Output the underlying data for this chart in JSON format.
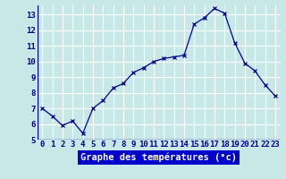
{
  "hours": [
    0,
    1,
    2,
    3,
    4,
    5,
    6,
    7,
    8,
    9,
    10,
    11,
    12,
    13,
    14,
    15,
    16,
    17,
    18,
    19,
    20,
    21,
    22,
    23
  ],
  "temps": [
    7.0,
    6.5,
    5.9,
    6.2,
    5.4,
    7.0,
    7.5,
    8.3,
    8.6,
    9.3,
    9.6,
    10.0,
    10.2,
    10.3,
    10.4,
    12.4,
    12.8,
    13.4,
    13.1,
    11.2,
    9.9,
    9.4,
    8.5,
    7.8
  ],
  "xlabel": "Graphe des températures (°c)",
  "ylim_min": 5,
  "ylim_max": 13.6,
  "yticks": [
    5,
    6,
    7,
    8,
    9,
    10,
    11,
    12,
    13
  ],
  "xlim_min": -0.5,
  "xlim_max": 23.5,
  "line_color": "#00008B",
  "marker": "x",
  "marker_color": "#00008B",
  "bg_color": "#c8e8e8",
  "grid_color": "#ffffff",
  "xlabel_color": "#ffffff",
  "xlabel_bg": "#0000cc",
  "tick_label_fontsize": 6.5,
  "xlabel_fontsize": 7.5
}
